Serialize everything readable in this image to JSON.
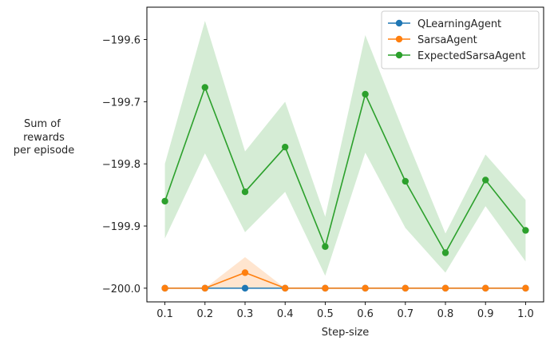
{
  "chart_data": {
    "type": "line",
    "title": "",
    "xlabel": "Step-size",
    "ylabel_lines": [
      "Sum of",
      " rewards",
      "per episode"
    ],
    "x": [
      0.1,
      0.2,
      0.3,
      0.4,
      0.5,
      0.6,
      0.7,
      0.8,
      0.9,
      1.0
    ],
    "x_tick_labels": [
      "0.1",
      "0.2",
      "0.3",
      "0.4",
      "0.5",
      "0.6",
      "0.7",
      "0.8",
      "0.9",
      "1.0"
    ],
    "y_ticks": [
      -200.0,
      -199.9,
      -199.8,
      -199.7,
      -199.6
    ],
    "y_tick_labels": [
      "−200.0",
      "−199.9",
      "−199.8",
      "−199.7",
      "−199.6"
    ],
    "xlim": [
      0.055,
      1.045
    ],
    "ylim": [
      -200.022,
      -199.548
    ],
    "grid": false,
    "legend_position": "upper right",
    "series": [
      {
        "name": "QLearningAgent",
        "color": "#1f77b4",
        "values": [
          -200.0,
          -200.0,
          -200.0,
          -200.0,
          -200.0,
          -200.0,
          -200.0,
          -200.0,
          -200.0,
          -200.0
        ],
        "lower": [
          -200.0,
          -200.0,
          -200.0,
          -200.0,
          -200.0,
          -200.0,
          -200.0,
          -200.0,
          -200.0,
          -200.0
        ],
        "upper": [
          -200.0,
          -200.0,
          -200.0,
          -200.0,
          -200.0,
          -200.0,
          -200.0,
          -200.0,
          -200.0,
          -200.0
        ]
      },
      {
        "name": "SarsaAgent",
        "color": "#ff7f0e",
        "values": [
          -200.0,
          -200.0,
          -199.975,
          -200.0,
          -200.0,
          -200.0,
          -200.0,
          -200.0,
          -200.0,
          -200.0
        ],
        "lower": [
          -200.0,
          -200.0,
          -200.0,
          -200.0,
          -200.0,
          -200.0,
          -200.0,
          -200.0,
          -200.0,
          -200.0
        ],
        "upper": [
          -200.0,
          -200.0,
          -199.95,
          -200.0,
          -200.0,
          -200.0,
          -200.0,
          -200.0,
          -200.0,
          -200.0
        ]
      },
      {
        "name": "ExpectedSarsaAgent",
        "color": "#2ca02c",
        "values": [
          -199.86,
          -199.677,
          -199.845,
          -199.773,
          -199.933,
          -199.688,
          -199.828,
          -199.943,
          -199.826,
          -199.907
        ],
        "lower": [
          -199.92,
          -199.783,
          -199.91,
          -199.845,
          -199.98,
          -199.782,
          -199.903,
          -199.975,
          -199.868,
          -199.957
        ],
        "upper": [
          -199.8,
          -199.57,
          -199.78,
          -199.7,
          -199.885,
          -199.593,
          -199.755,
          -199.912,
          -199.785,
          -199.858
        ]
      }
    ]
  }
}
